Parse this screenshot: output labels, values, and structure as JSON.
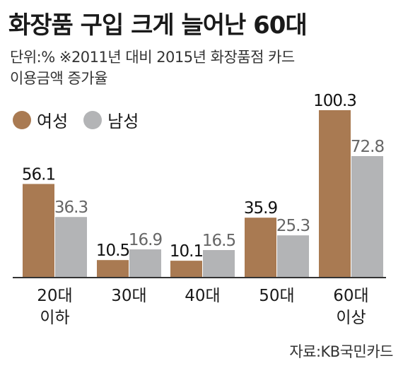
{
  "header": {
    "title": "화장품 구입 크게 늘어난 60대",
    "unit_line1": "단위:% ※2011년 대비 2015년 화장품점 카드",
    "unit_line2": "이용금액 증가율"
  },
  "legend": {
    "female": "여성",
    "male": "남성"
  },
  "colors": {
    "female": "#a97a52",
    "male": "#b3b4b6",
    "baseline": "#333333"
  },
  "source": "자료:KB국민카드",
  "chart_data": {
    "type": "bar",
    "categories": [
      [
        "20대",
        "이하"
      ],
      [
        "30대"
      ],
      [
        "40대"
      ],
      [
        "50대"
      ],
      [
        "60대",
        "이상"
      ]
    ],
    "series": [
      {
        "name": "여성",
        "values": [
          56.1,
          10.5,
          10.1,
          35.9,
          100.3
        ],
        "labels": [
          "56.1",
          "10.5",
          "10.1",
          "35.9",
          "100.3"
        ]
      },
      {
        "name": "남성",
        "values": [
          36.3,
          16.9,
          16.5,
          25.3,
          72.8
        ],
        "labels": [
          "36.3",
          "16.9",
          "16.5",
          "25.3",
          "72.8"
        ]
      }
    ],
    "title": "화장품 구입 크게 늘어난 60대",
    "ylabel": "",
    "xlabel": "",
    "ylim": [
      0,
      100.3
    ],
    "grid": false,
    "legend_position": "top-left"
  }
}
